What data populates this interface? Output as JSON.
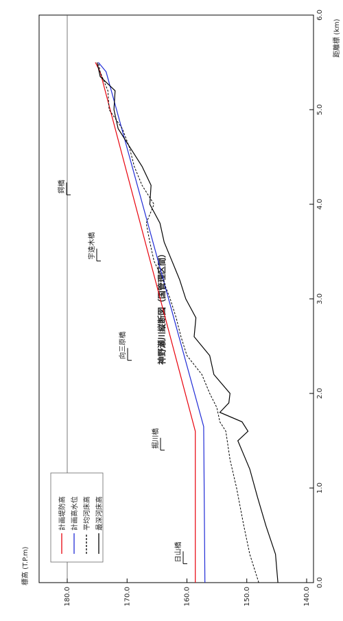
{
  "chart_data": {
    "type": "line",
    "title": "神野瀬川縦断図（国管理区間）",
    "xlabel": "距離標 (km)",
    "ylabel": "標高 (T.P.m)",
    "xlim": [
      0.0,
      6.0
    ],
    "ylim": [
      140.0,
      185.0
    ],
    "x_ticks": [
      "0.0",
      "1.0",
      "2.0",
      "3.0",
      "4.0",
      "5.0",
      "6.0"
    ],
    "y_ticks": [
      "140.0",
      "150.0",
      "160.0",
      "170.0",
      "180.0"
    ],
    "y_tick_values": [
      140,
      150,
      160,
      170,
      180
    ],
    "grid": false,
    "reference_line_y": 180.0,
    "legend_position": "bottom-left",
    "series": [
      {
        "name": "計画堤防高",
        "color": "#e8000b",
        "style": "solid",
        "x": [
          0.0,
          1.6,
          5.4,
          5.5
        ],
        "y": [
          158.6,
          158.6,
          174.5,
          175.3
        ]
      },
      {
        "name": "計画高水位",
        "color": "#1f2bd6",
        "style": "solid",
        "x": [
          0.0,
          1.65,
          5.4,
          5.5
        ],
        "y": [
          157.0,
          157.2,
          173.5,
          174.8
        ]
      },
      {
        "name": "平均河床高",
        "color": "#000000",
        "style": "dashed",
        "x": [
          0.0,
          0.3,
          0.6,
          1.0,
          1.3,
          1.6,
          1.7,
          1.85,
          2.0,
          2.2,
          2.4,
          2.6,
          2.8,
          3.0,
          3.2,
          3.4,
          3.6,
          3.8,
          4.0,
          4.2,
          4.4,
          4.6,
          4.8,
          5.0,
          5.2,
          5.4,
          5.5
        ],
        "y": [
          148.0,
          149.5,
          150.5,
          151.7,
          152.8,
          153.5,
          154.5,
          155.0,
          156.2,
          157.5,
          160.0,
          161.0,
          161.8,
          162.8,
          164.0,
          165.5,
          166.2,
          166.8,
          165.5,
          167.5,
          168.8,
          169.6,
          170.8,
          173.0,
          173.2,
          174.5,
          174.8
        ]
      },
      {
        "name": "最深河床高",
        "color": "#000000",
        "style": "solid",
        "x": [
          0.0,
          0.3,
          0.6,
          0.9,
          1.2,
          1.35,
          1.5,
          1.6,
          1.7,
          1.8,
          1.9,
          2.0,
          2.2,
          2.4,
          2.6,
          2.8,
          3.0,
          3.2,
          3.4,
          3.6,
          3.8,
          4.0,
          4.2,
          4.4,
          4.6,
          4.8,
          5.0,
          5.2,
          5.35,
          5.5
        ],
        "y": [
          144.8,
          145.2,
          146.8,
          148.2,
          149.5,
          150.5,
          151.5,
          149.8,
          150.8,
          154.5,
          153.0,
          152.8,
          155.5,
          156.2,
          158.8,
          158.5,
          160.2,
          161.2,
          162.5,
          163.8,
          164.5,
          166.2,
          166.0,
          167.5,
          169.5,
          171.5,
          172.2,
          172.0,
          174.5,
          175.0
        ]
      }
    ],
    "annotations": [
      {
        "label": "日山橋",
        "x": 0.2
      },
      {
        "label": "掘川橋",
        "x": 1.4
      },
      {
        "label": "向三原橋",
        "x": 2.35
      },
      {
        "label": "宇遠木橋",
        "x": 3.4
      },
      {
        "label": "鍔橋",
        "x": 4.1
      }
    ]
  }
}
